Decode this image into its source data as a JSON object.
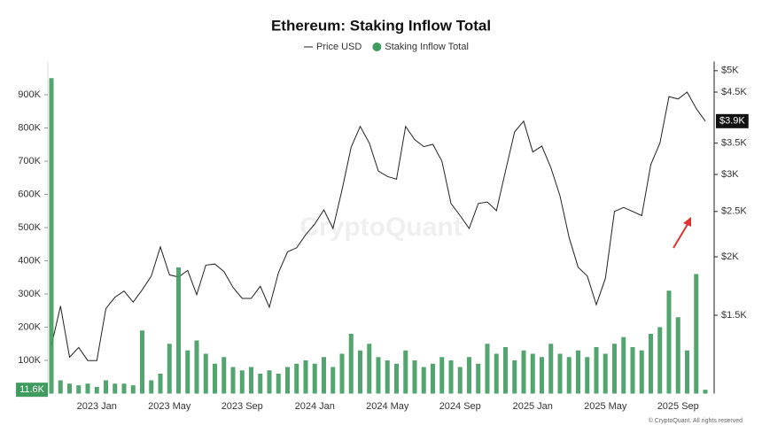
{
  "chart_data": {
    "type": "combo",
    "title": "Ethereum: Staking Inflow Total",
    "watermark": "CryptoQuant",
    "footer": "© CryptoQuant. All rights reserved",
    "categories": [
      null,
      null,
      null,
      null,
      null,
      "2023 Jan",
      null,
      null,
      null,
      null,
      null,
      null,
      null,
      "2023 May",
      null,
      null,
      null,
      null,
      null,
      null,
      null,
      "2023 Sep",
      null,
      null,
      null,
      null,
      null,
      null,
      null,
      "2024 Jan",
      null,
      null,
      null,
      null,
      null,
      null,
      null,
      "2024 May",
      null,
      null,
      null,
      null,
      null,
      null,
      null,
      "2024 Sep",
      null,
      null,
      null,
      null,
      null,
      null,
      null,
      "2025 Jan",
      null,
      null,
      null,
      null,
      null,
      null,
      null,
      "2025 May",
      null,
      null,
      null,
      null,
      null,
      null,
      null,
      "2025 Sep",
      null,
      null,
      null
    ],
    "series": [
      {
        "name": "Price USD",
        "type": "line",
        "axis": "y2",
        "color": "#222222",
        "values": [
          1290,
          1570,
          1220,
          1280,
          1200,
          1200,
          1550,
          1640,
          1690,
          1600,
          1700,
          1820,
          2100,
          1830,
          1810,
          1870,
          1660,
          1920,
          1930,
          1860,
          1720,
          1630,
          1630,
          1730,
          1560,
          1850,
          2050,
          2090,
          2230,
          2350,
          2520,
          2300,
          2780,
          3430,
          3800,
          3500,
          3050,
          2970,
          2930,
          3800,
          3560,
          3440,
          3480,
          3200,
          2600,
          2450,
          2300,
          2600,
          2620,
          2510,
          3050,
          3700,
          3900,
          3350,
          3450,
          3100,
          2700,
          2200,
          1900,
          1820,
          1580,
          1800,
          2500,
          2550,
          2500,
          2450,
          3150,
          3500,
          4400,
          4350,
          4500,
          4150,
          3900
        ]
      },
      {
        "name": "Staking Inflow Total",
        "type": "bar",
        "axis": "y",
        "color": "#3f9b5e",
        "values": [
          950000,
          40000,
          30000,
          25000,
          30000,
          20000,
          40000,
          30000,
          30000,
          25000,
          190000,
          40000,
          60000,
          150000,
          380000,
          130000,
          160000,
          120000,
          90000,
          110000,
          80000,
          70000,
          80000,
          60000,
          70000,
          60000,
          80000,
          90000,
          100000,
          90000,
          110000,
          80000,
          120000,
          180000,
          130000,
          150000,
          110000,
          100000,
          90000,
          130000,
          100000,
          80000,
          90000,
          110000,
          100000,
          80000,
          110000,
          90000,
          150000,
          120000,
          140000,
          100000,
          130000,
          120000,
          110000,
          150000,
          120000,
          110000,
          130000,
          110000,
          140000,
          120000,
          150000,
          170000,
          140000,
          130000,
          180000,
          200000,
          310000,
          230000,
          130000,
          360000,
          11600
        ]
      }
    ],
    "ylim": [
      0,
      1000000
    ],
    "yticks": [
      {
        "value": 100000,
        "label": "100K"
      },
      {
        "value": 200000,
        "label": "200K"
      },
      {
        "value": 300000,
        "label": "300K"
      },
      {
        "value": 400000,
        "label": "400K"
      },
      {
        "value": 500000,
        "label": "500K"
      },
      {
        "value": 600000,
        "label": "600K"
      },
      {
        "value": 700000,
        "label": "700K"
      },
      {
        "value": 800000,
        "label": "800K"
      },
      {
        "value": 900000,
        "label": "900K"
      }
    ],
    "y2lim": [
      1020,
      5230
    ],
    "y2scale": "log",
    "y2ticks": [
      {
        "value": 1500,
        "label": "$1.5K"
      },
      {
        "value": 2000,
        "label": "$2K"
      },
      {
        "value": 2500,
        "label": "$2.5K"
      },
      {
        "value": 3000,
        "label": "$3K"
      },
      {
        "value": 3500,
        "label": "$3.5K"
      },
      {
        "value": 4500,
        "label": "$4.5K"
      },
      {
        "value": 5000,
        "label": "$5K"
      }
    ],
    "current_labels": [
      {
        "value": 11600,
        "label": "11.6K",
        "axis": "y",
        "color": "#3f9b5e"
      },
      {
        "value": 3900,
        "label": "$3.9K",
        "axis": "y2",
        "color": "#111111"
      }
    ],
    "grid": false
  }
}
